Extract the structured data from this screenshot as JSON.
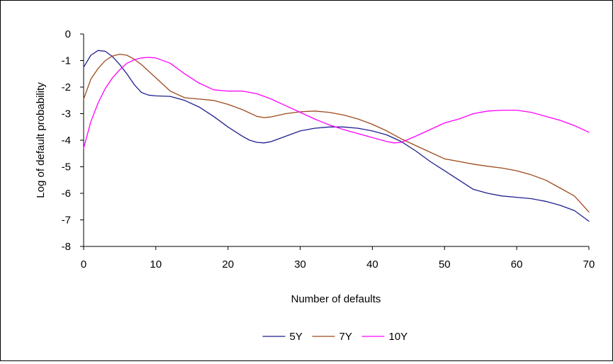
{
  "chart_data": {
    "type": "line",
    "title": "",
    "xlabel": "Number of defaults",
    "ylabel": "Log of default probability",
    "xlim": [
      0,
      70
    ],
    "ylim": [
      -8,
      0
    ],
    "xticks": [
      0,
      10,
      20,
      30,
      40,
      50,
      60,
      70
    ],
    "yticks": [
      0,
      -1,
      -2,
      -3,
      -4,
      -5,
      -6,
      -7,
      -8
    ],
    "grid": false,
    "legend_position": "bottom",
    "series": [
      {
        "name": "5Y",
        "color": "#1f1f8f",
        "x": [
          0,
          1,
          2,
          3,
          4,
          5,
          6,
          7,
          8,
          9,
          10,
          12,
          14,
          16,
          18,
          20,
          22,
          23,
          24,
          25,
          26,
          28,
          30,
          32,
          34,
          36,
          38,
          40,
          42,
          44,
          46,
          48,
          50,
          52,
          54,
          56,
          58,
          60,
          62,
          64,
          66,
          68,
          70
        ],
        "y": [
          -1.25,
          -0.8,
          -0.62,
          -0.65,
          -0.85,
          -1.15,
          -1.5,
          -1.9,
          -2.2,
          -2.3,
          -2.33,
          -2.35,
          -2.5,
          -2.75,
          -3.1,
          -3.5,
          -3.85,
          -4.0,
          -4.08,
          -4.1,
          -4.05,
          -3.85,
          -3.65,
          -3.55,
          -3.5,
          -3.5,
          -3.55,
          -3.65,
          -3.8,
          -4.05,
          -4.4,
          -4.8,
          -5.15,
          -5.5,
          -5.85,
          -6.0,
          -6.1,
          -6.15,
          -6.2,
          -6.3,
          -6.45,
          -6.65,
          -7.05
        ]
      },
      {
        "name": "7Y",
        "color": "#9e4a1c",
        "x": [
          0,
          1,
          2,
          3,
          4,
          5,
          6,
          7,
          8,
          9,
          10,
          12,
          14,
          16,
          18,
          20,
          22,
          24,
          25,
          26,
          28,
          30,
          32,
          34,
          36,
          38,
          40,
          42,
          44,
          46,
          48,
          50,
          52,
          54,
          56,
          58,
          60,
          62,
          64,
          66,
          68,
          70
        ],
        "y": [
          -2.45,
          -1.7,
          -1.3,
          -1.0,
          -0.83,
          -0.76,
          -0.8,
          -0.95,
          -1.15,
          -1.4,
          -1.65,
          -2.15,
          -2.4,
          -2.45,
          -2.5,
          -2.65,
          -2.85,
          -3.1,
          -3.15,
          -3.12,
          -3.0,
          -2.93,
          -2.9,
          -2.95,
          -3.05,
          -3.2,
          -3.4,
          -3.65,
          -3.95,
          -4.2,
          -4.45,
          -4.7,
          -4.8,
          -4.9,
          -4.98,
          -5.05,
          -5.15,
          -5.3,
          -5.5,
          -5.8,
          -6.1,
          -6.7
        ]
      },
      {
        "name": "10Y",
        "color": "#ff00ff",
        "x": [
          0,
          1,
          2,
          3,
          4,
          5,
          6,
          7,
          8,
          9,
          10,
          12,
          14,
          16,
          18,
          20,
          22,
          24,
          26,
          28,
          30,
          32,
          34,
          36,
          38,
          40,
          42,
          43,
          44,
          46,
          48,
          50,
          52,
          54,
          56,
          58,
          60,
          62,
          64,
          66,
          68,
          70
        ],
        "y": [
          -4.3,
          -3.3,
          -2.6,
          -2.05,
          -1.65,
          -1.35,
          -1.1,
          -0.97,
          -0.9,
          -0.88,
          -0.9,
          -1.1,
          -1.5,
          -1.85,
          -2.1,
          -2.15,
          -2.15,
          -2.25,
          -2.45,
          -2.7,
          -2.95,
          -3.2,
          -3.42,
          -3.6,
          -3.75,
          -3.9,
          -4.05,
          -4.1,
          -4.08,
          -3.85,
          -3.6,
          -3.35,
          -3.2,
          -3.0,
          -2.9,
          -2.87,
          -2.87,
          -2.95,
          -3.1,
          -3.25,
          -3.45,
          -3.7
        ]
      }
    ]
  }
}
